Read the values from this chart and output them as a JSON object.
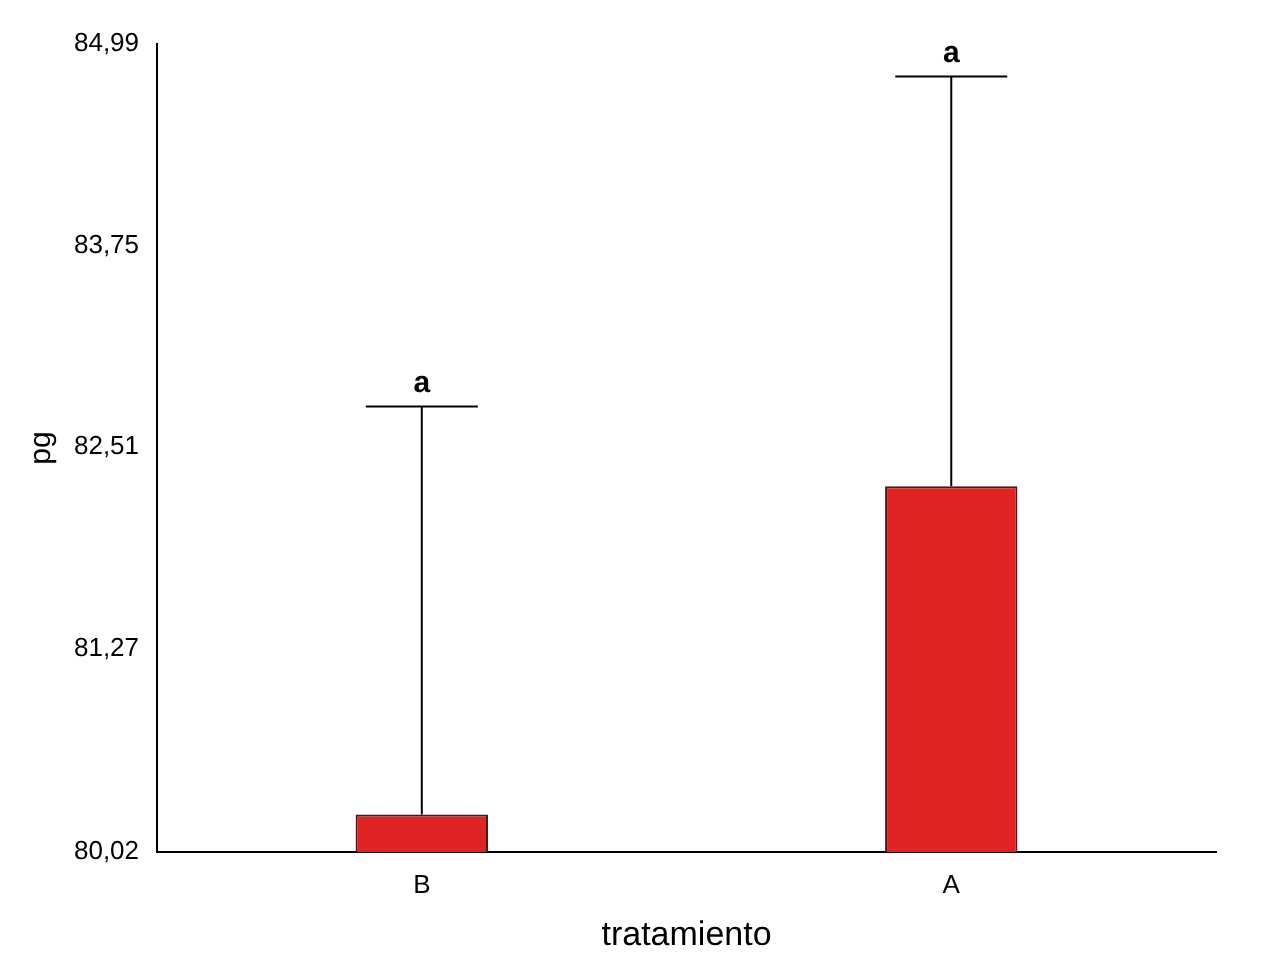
{
  "chart_data": {
    "type": "bar",
    "xlabel": "tratamiento",
    "ylabel": "pg",
    "categories": [
      "B",
      "A"
    ],
    "values": [
      80.25,
      82.27
    ],
    "color": "#e02424",
    "errors": [
      [
        80.25,
        82.76
      ],
      [
        82.27,
        84.79
      ]
    ],
    "ylim": [
      80.02,
      84.99
    ],
    "yticks": [
      {
        "value": 80.02,
        "label": "80,02"
      },
      {
        "value": 81.27,
        "label": "81,27"
      },
      {
        "value": 82.51,
        "label": "82,51"
      },
      {
        "value": 83.75,
        "label": "83,75"
      },
      {
        "value": 84.99,
        "label": "84,99"
      }
    ],
    "annotations": [
      {
        "text": "a",
        "x": "B",
        "y": 82.76
      },
      {
        "text": "a",
        "x": "A",
        "y": 84.79
      }
    ],
    "grid": false,
    "legend": false
  }
}
